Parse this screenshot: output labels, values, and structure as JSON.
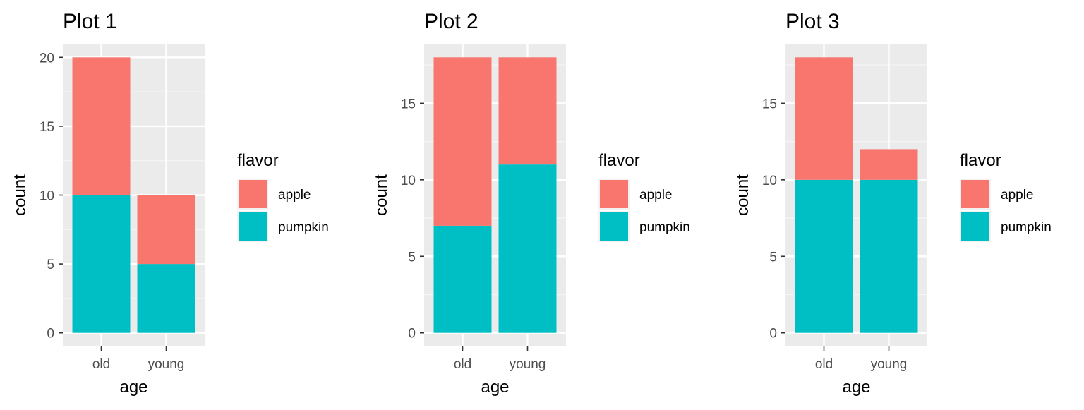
{
  "chart_data": [
    {
      "type": "bar",
      "stacked": true,
      "title": "Plot 1",
      "xlabel": "age",
      "ylabel": "count",
      "categories": [
        "old",
        "young"
      ],
      "series": [
        {
          "name": "apple",
          "values": [
            10,
            5
          ],
          "color": "#F8766D"
        },
        {
          "name": "pumpkin",
          "values": [
            10,
            5
          ],
          "color": "#00BFC4"
        }
      ],
      "ylim": [
        0,
        20
      ],
      "yticks": [
        0,
        5,
        10,
        15,
        20
      ],
      "legend": {
        "title": "flavor",
        "placement": "right"
      },
      "grid": true
    },
    {
      "type": "bar",
      "stacked": true,
      "title": "Plot 2",
      "xlabel": "age",
      "ylabel": "count",
      "categories": [
        "old",
        "young"
      ],
      "series": [
        {
          "name": "apple",
          "values": [
            11,
            7
          ],
          "color": "#F8766D"
        },
        {
          "name": "pumpkin",
          "values": [
            7,
            11
          ],
          "color": "#00BFC4"
        }
      ],
      "ylim": [
        0,
        18
      ],
      "yticks": [
        0,
        5,
        10,
        15
      ],
      "legend": {
        "title": "flavor",
        "placement": "right"
      },
      "grid": true
    },
    {
      "type": "bar",
      "stacked": true,
      "title": "Plot 3",
      "xlabel": "age",
      "ylabel": "count",
      "categories": [
        "old",
        "young"
      ],
      "series": [
        {
          "name": "apple",
          "values": [
            8,
            2
          ],
          "color": "#F8766D"
        },
        {
          "name": "pumpkin",
          "values": [
            10,
            10
          ],
          "color": "#00BFC4"
        }
      ],
      "ylim": [
        0,
        18
      ],
      "yticks": [
        0,
        5,
        10,
        15
      ],
      "legend": {
        "title": "flavor",
        "placement": "right"
      },
      "grid": true
    }
  ]
}
